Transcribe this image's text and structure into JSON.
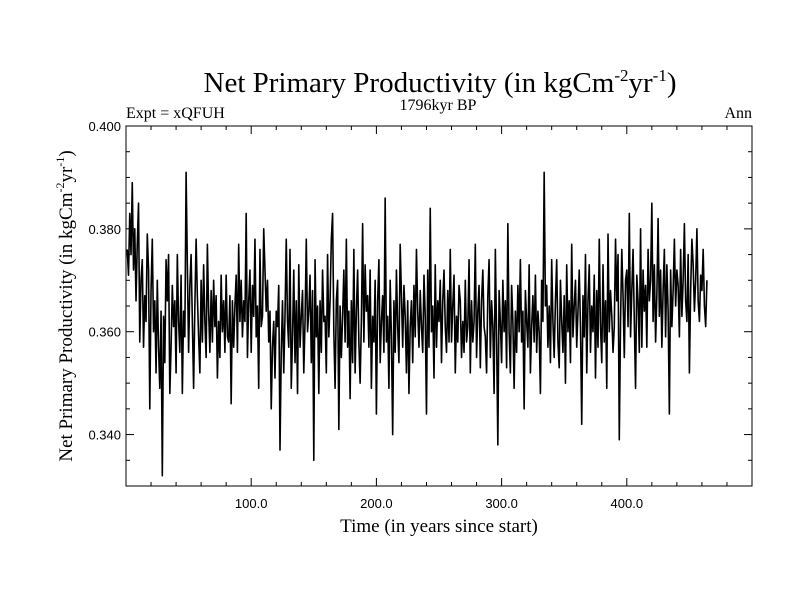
{
  "chart_data": {
    "type": "line",
    "title_main": "Net Primary Productivity (in kgCm",
    "title_sup1": "-2",
    "title_mid": "yr",
    "title_sup2": "-1",
    "title_end": ")",
    "subtitle_left": "Expt = xQFUH",
    "subtitle_center": "1796kyr BP",
    "subtitle_right": "Ann",
    "xlabel": "Time (in years since start)",
    "ylabel_main": "Net Primary Productivity (in kgCm",
    "ylabel_sup1": "-2",
    "ylabel_mid": "yr",
    "ylabel_sup2": "-1",
    "ylabel_end": ")",
    "xlim": [
      0,
      500
    ],
    "ylim": [
      0.33,
      0.4
    ],
    "x_ticks": [
      100,
      200,
      300,
      400
    ],
    "x_tick_labels": [
      "100.0",
      "200.0",
      "300.0",
      "400.0"
    ],
    "y_ticks": [
      0.34,
      0.36,
      0.38,
      0.4
    ],
    "y_tick_labels": [
      "0.340",
      "0.360",
      "0.380",
      "0.400"
    ],
    "grid": false,
    "series": [
      {
        "x_start": 1,
        "x_step": 1,
        "values": [
          0.376,
          0.371,
          0.383,
          0.375,
          0.389,
          0.372,
          0.38,
          0.366,
          0.377,
          0.385,
          0.358,
          0.37,
          0.374,
          0.357,
          0.367,
          0.362,
          0.379,
          0.372,
          0.345,
          0.368,
          0.378,
          0.36,
          0.366,
          0.352,
          0.37,
          0.357,
          0.349,
          0.364,
          0.332,
          0.363,
          0.354,
          0.374,
          0.366,
          0.375,
          0.348,
          0.357,
          0.369,
          0.361,
          0.366,
          0.352,
          0.375,
          0.362,
          0.356,
          0.371,
          0.348,
          0.364,
          0.359,
          0.391,
          0.373,
          0.356,
          0.369,
          0.375,
          0.362,
          0.349,
          0.365,
          0.378,
          0.367,
          0.359,
          0.352,
          0.37,
          0.358,
          0.373,
          0.362,
          0.355,
          0.377,
          0.364,
          0.356,
          0.368,
          0.358,
          0.37,
          0.361,
          0.367,
          0.351,
          0.362,
          0.355,
          0.371,
          0.36,
          0.366,
          0.356,
          0.371,
          0.359,
          0.358,
          0.367,
          0.346,
          0.366,
          0.357,
          0.365,
          0.371,
          0.356,
          0.377,
          0.362,
          0.37,
          0.359,
          0.366,
          0.362,
          0.383,
          0.355,
          0.366,
          0.372,
          0.356,
          0.369,
          0.363,
          0.378,
          0.359,
          0.365,
          0.349,
          0.376,
          0.361,
          0.363,
          0.38,
          0.372,
          0.364,
          0.37,
          0.358,
          0.364,
          0.345,
          0.357,
          0.362,
          0.351,
          0.364,
          0.361,
          0.369,
          0.337,
          0.356,
          0.366,
          0.352,
          0.363,
          0.378,
          0.362,
          0.357,
          0.376,
          0.349,
          0.359,
          0.372,
          0.354,
          0.366,
          0.348,
          0.373,
          0.357,
          0.363,
          0.368,
          0.352,
          0.362,
          0.378,
          0.36,
          0.364,
          0.371,
          0.354,
          0.368,
          0.335,
          0.374,
          0.359,
          0.365,
          0.348,
          0.366,
          0.356,
          0.372,
          0.362,
          0.363,
          0.352,
          0.375,
          0.359,
          0.366,
          0.378,
          0.383,
          0.36,
          0.349,
          0.366,
          0.37,
          0.341,
          0.365,
          0.355,
          0.363,
          0.372,
          0.358,
          0.378,
          0.357,
          0.364,
          0.347,
          0.366,
          0.354,
          0.376,
          0.352,
          0.364,
          0.372,
          0.358,
          0.35,
          0.362,
          0.381,
          0.358,
          0.373,
          0.364,
          0.367,
          0.357,
          0.372,
          0.349,
          0.363,
          0.358,
          0.37,
          0.344,
          0.366,
          0.374,
          0.354,
          0.362,
          0.367,
          0.356,
          0.386,
          0.358,
          0.363,
          0.349,
          0.37,
          0.359,
          0.34,
          0.366,
          0.356,
          0.372,
          0.361,
          0.354,
          0.377,
          0.367,
          0.357,
          0.369,
          0.363,
          0.352,
          0.366,
          0.348,
          0.361,
          0.366,
          0.354,
          0.369,
          0.359,
          0.376,
          0.364,
          0.357,
          0.368,
          0.361,
          0.356,
          0.371,
          0.363,
          0.344,
          0.372,
          0.357,
          0.384,
          0.36,
          0.365,
          0.351,
          0.373,
          0.357,
          0.366,
          0.362,
          0.37,
          0.354,
          0.366,
          0.372,
          0.361,
          0.356,
          0.368,
          0.358,
          0.376,
          0.358,
          0.365,
          0.371,
          0.352,
          0.363,
          0.358,
          0.369,
          0.366,
          0.355,
          0.362,
          0.356,
          0.37,
          0.358,
          0.361,
          0.374,
          0.352,
          0.366,
          0.358,
          0.362,
          0.377,
          0.355,
          0.364,
          0.369,
          0.353,
          0.366,
          0.372,
          0.361,
          0.359,
          0.352,
          0.367,
          0.374,
          0.355,
          0.366,
          0.361,
          0.348,
          0.376,
          0.359,
          0.338,
          0.368,
          0.362,
          0.354,
          0.37,
          0.36,
          0.366,
          0.353,
          0.381,
          0.36,
          0.352,
          0.369,
          0.362,
          0.349,
          0.364,
          0.356,
          0.369,
          0.36,
          0.374,
          0.358,
          0.364,
          0.345,
          0.368,
          0.362,
          0.357,
          0.373,
          0.352,
          0.361,
          0.367,
          0.358,
          0.371,
          0.356,
          0.364,
          0.36,
          0.348,
          0.37,
          0.362,
          0.391,
          0.365,
          0.369,
          0.357,
          0.365,
          0.354,
          0.374,
          0.362,
          0.355,
          0.366,
          0.374,
          0.358,
          0.353,
          0.37,
          0.362,
          0.356,
          0.367,
          0.35,
          0.373,
          0.36,
          0.366,
          0.354,
          0.377,
          0.359,
          0.365,
          0.37,
          0.357,
          0.364,
          0.372,
          0.361,
          0.342,
          0.367,
          0.359,
          0.375,
          0.352,
          0.366,
          0.373,
          0.356,
          0.365,
          0.36,
          0.371,
          0.351,
          0.368,
          0.357,
          0.378,
          0.361,
          0.354,
          0.373,
          0.358,
          0.366,
          0.349,
          0.379,
          0.36,
          0.368,
          0.363,
          0.356,
          0.361,
          0.378,
          0.366,
          0.375,
          0.339,
          0.362,
          0.376,
          0.367,
          0.355,
          0.37,
          0.372,
          0.361,
          0.383,
          0.359,
          0.368,
          0.376,
          0.362,
          0.349,
          0.371,
          0.366,
          0.356,
          0.38,
          0.357,
          0.372,
          0.364,
          0.369,
          0.357,
          0.376,
          0.366,
          0.37,
          0.385,
          0.362,
          0.373,
          0.358,
          0.367,
          0.382,
          0.363,
          0.372,
          0.357,
          0.368,
          0.376,
          0.359,
          0.373,
          0.364,
          0.344,
          0.372,
          0.361,
          0.368,
          0.378,
          0.365,
          0.372,
          0.369,
          0.359,
          0.376,
          0.363,
          0.37,
          0.381,
          0.366,
          0.362,
          0.375,
          0.352,
          0.368,
          0.378,
          0.373,
          0.364,
          0.37,
          0.38,
          0.366,
          0.362,
          0.371,
          0.368,
          0.376,
          0.365,
          0.361,
          0.37
        ]
      }
    ]
  }
}
